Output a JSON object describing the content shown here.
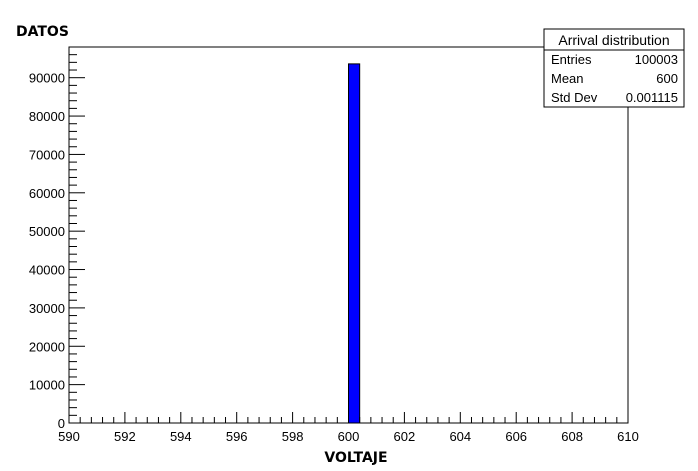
{
  "chart_data": {
    "type": "bar",
    "title": "",
    "ylabel": "DATOS",
    "xlabel": "VOLTAJE",
    "xlim": [
      590,
      610
    ],
    "ylim": [
      0,
      98000
    ],
    "x_ticks": [
      590,
      592,
      594,
      596,
      598,
      600,
      602,
      604,
      606,
      608,
      610
    ],
    "y_ticks": [
      0,
      10000,
      20000,
      30000,
      40000,
      50000,
      60000,
      70000,
      80000,
      90000
    ],
    "bins": [
      {
        "x0": 600.0,
        "x1": 600.4,
        "value": 93600
      }
    ],
    "bar_color": "#0000ff",
    "stats_box": {
      "title": "Arrival distribution",
      "rows": [
        {
          "label": "Entries",
          "value": "100003"
        },
        {
          "label": "Mean",
          "value": "600"
        },
        {
          "label": "Std Dev",
          "value": "0.001115"
        }
      ]
    }
  }
}
